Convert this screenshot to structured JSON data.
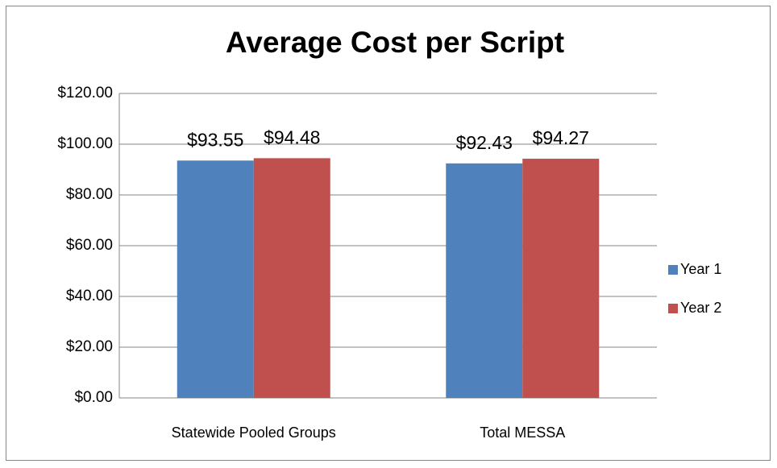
{
  "chart_data": {
    "type": "bar",
    "title": "Average Cost per Script",
    "categories": [
      "Statewide Pooled Groups",
      "Total MESSA"
    ],
    "series": [
      {
        "name": "Year 1",
        "color": "#4f81bd",
        "values": [
          93.55,
          92.43
        ],
        "value_labels": [
          "$93.55",
          "$92.43"
        ]
      },
      {
        "name": "Year 2",
        "color": "#c0504d",
        "values": [
          94.48,
          94.27
        ],
        "value_labels": [
          "$94.48",
          "$94.27"
        ]
      }
    ],
    "ylim": [
      0,
      120
    ],
    "yticks": [
      {
        "value": 0,
        "label": "$0.00"
      },
      {
        "value": 20,
        "label": "$20.00"
      },
      {
        "value": 40,
        "label": "$40.00"
      },
      {
        "value": 60,
        "label": "$60.00"
      },
      {
        "value": 80,
        "label": "$80.00"
      },
      {
        "value": 100,
        "label": "$100.00"
      },
      {
        "value": 120,
        "label": "$120.00"
      }
    ],
    "grid": true,
    "legend": "right"
  }
}
